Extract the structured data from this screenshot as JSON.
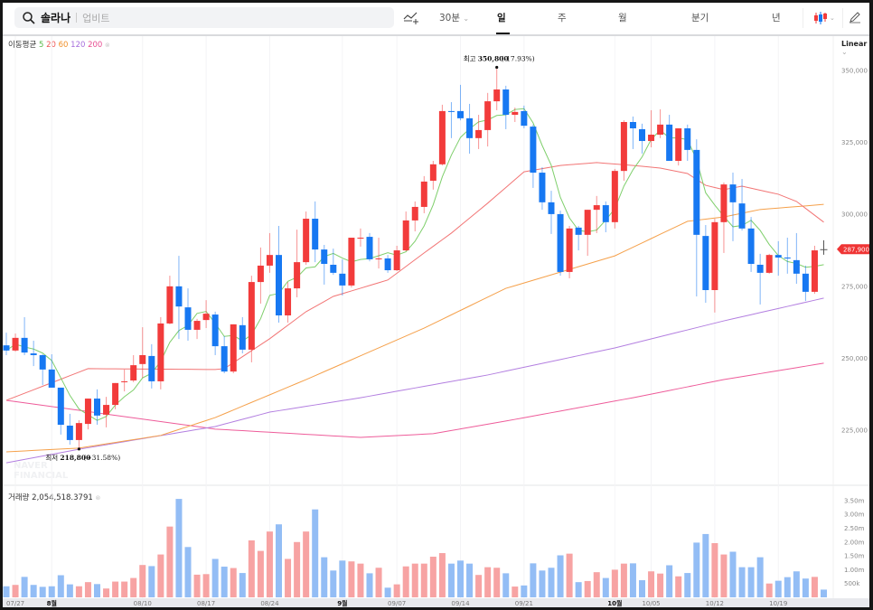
{
  "header": {
    "search_name": "솔라나",
    "search_exchange": "업비트",
    "interval_label": "30분",
    "tabs": [
      "일",
      "주",
      "월",
      "분기",
      "년"
    ],
    "active_tab": "일"
  },
  "legend": {
    "ma_label": "이동평균",
    "ma_periods": [
      "5",
      "20",
      "60",
      "120",
      "200"
    ],
    "volume_label": "거래량",
    "volume_value": "2,054,518.3791",
    "scale_label": "Linear"
  },
  "colors": {
    "up": "#f23b3b",
    "down": "#1778f2",
    "up_vol": "#f7a3a3",
    "down_vol": "#93bdf5",
    "ma5": "#7fcf6c",
    "ma20": "#f27575",
    "ma60": "#f5a04a",
    "ma120": "#b37fe0",
    "ma200": "#ee5c9a",
    "last_price_bg": "#ef3434"
  },
  "watermark": "NAVER FINANCIAL",
  "chart_data": {
    "type": "candlestick",
    "y_ticks": [
      "350,000",
      "325,000",
      "300,000",
      "275,000",
      "250,000",
      "225,000"
    ],
    "y_tick_values": [
      350000,
      325000,
      300000,
      275000,
      250000,
      225000
    ],
    "ylim": [
      212000,
      362000
    ],
    "volume_ticks": [
      "3.50m",
      "3.00m",
      "2.50m",
      "2.00m",
      "1.50m",
      "1.00m",
      "500k"
    ],
    "volume_tick_values": [
      3.5,
      3.0,
      2.5,
      2.0,
      1.5,
      1.0,
      0.5
    ],
    "x_labels": [
      {
        "i": 1,
        "label": "07/27",
        "month": false
      },
      {
        "i": 5,
        "label": "8월",
        "month": true
      },
      {
        "i": 15,
        "label": "08/10",
        "month": false
      },
      {
        "i": 22,
        "label": "08/17",
        "month": false
      },
      {
        "i": 29,
        "label": "08/24",
        "month": false
      },
      {
        "i": 37,
        "label": "9월",
        "month": true
      },
      {
        "i": 43,
        "label": "09/07",
        "month": false
      },
      {
        "i": 50,
        "label": "09/14",
        "month": false
      },
      {
        "i": 57,
        "label": "09/21",
        "month": false
      },
      {
        "i": 67,
        "label": "10월",
        "month": true
      },
      {
        "i": 71,
        "label": "10/05",
        "month": false
      },
      {
        "i": 78,
        "label": "10/12",
        "month": false
      },
      {
        "i": 85,
        "label": "10/19",
        "month": false
      }
    ],
    "high_annotation": {
      "i": 54,
      "value": 350800,
      "label": "최고",
      "value_text": "350,800",
      "pct_text": "(-17.93%)"
    },
    "low_annotation": {
      "i": 8,
      "value": 218800,
      "label": "최저",
      "value_text": "218,800",
      "pct_text": "(+31.58%)"
    },
    "last_price": {
      "value": 287900,
      "label": "287,900"
    },
    "candles_ohlc_volume_m": [
      [
        254500,
        258900,
        251100,
        252700,
        0.4
      ],
      [
        252700,
        258600,
        252300,
        257100,
        0.45
      ],
      [
        257100,
        264300,
        251100,
        252000,
        0.74
      ],
      [
        251700,
        256100,
        247300,
        251100,
        0.45
      ],
      [
        251100,
        251400,
        240700,
        246100,
        0.38
      ],
      [
        246100,
        251400,
        239800,
        239800,
        0.4
      ],
      [
        239800,
        239800,
        223500,
        226900,
        0.8
      ],
      [
        226600,
        230700,
        220000,
        221600,
        0.47
      ],
      [
        221600,
        228500,
        218800,
        227500,
        0.4
      ],
      [
        227200,
        236000,
        225300,
        236000,
        0.55
      ],
      [
        236000,
        239200,
        226900,
        230100,
        0.48
      ],
      [
        230400,
        236600,
        226000,
        233800,
        0.32
      ],
      [
        233800,
        241400,
        232300,
        241400,
        0.57
      ],
      [
        241700,
        246100,
        238500,
        242000,
        0.57
      ],
      [
        242300,
        251100,
        241700,
        247600,
        0.7
      ],
      [
        248000,
        260800,
        243200,
        251100,
        1.17
      ],
      [
        250800,
        254900,
        239500,
        242000,
        1.13
      ],
      [
        242000,
        264300,
        239200,
        262100,
        1.55
      ],
      [
        262100,
        278700,
        261800,
        275000,
        2.56
      ],
      [
        275000,
        285600,
        256700,
        268000,
        3.56
      ],
      [
        267700,
        274300,
        256100,
        259900,
        1.82
      ],
      [
        259900,
        263700,
        256700,
        263000,
        0.82
      ],
      [
        263300,
        270200,
        260500,
        265500,
        0.84
      ],
      [
        265200,
        266200,
        251100,
        254200,
        1.39
      ],
      [
        254200,
        257700,
        244800,
        245400,
        1.11
      ],
      [
        245400,
        261800,
        244800,
        261800,
        1.06
      ],
      [
        261500,
        264300,
        251700,
        253000,
        0.88
      ],
      [
        253000,
        278700,
        248600,
        276500,
        2.06
      ],
      [
        276500,
        288500,
        269000,
        282200,
        1.68
      ],
      [
        282200,
        293500,
        279700,
        285900,
        2.38
      ],
      [
        285900,
        296000,
        262400,
        264900,
        2.64
      ],
      [
        264900,
        276500,
        262400,
        274300,
        1.39
      ],
      [
        274300,
        294700,
        271200,
        283400,
        2.0
      ],
      [
        283400,
        301000,
        282500,
        298500,
        2.38
      ],
      [
        298500,
        304500,
        283400,
        287800,
        3.18
      ],
      [
        287800,
        289400,
        275600,
        282800,
        1.45
      ],
      [
        282500,
        288100,
        279000,
        279700,
        0.97
      ],
      [
        279400,
        284400,
        271800,
        275300,
        1.33
      ],
      [
        275300,
        291900,
        274600,
        291900,
        1.3
      ],
      [
        291600,
        295100,
        288800,
        291900,
        1.22
      ],
      [
        292200,
        293500,
        283700,
        284400,
        0.87
      ],
      [
        284400,
        291900,
        281200,
        284700,
        1.07
      ],
      [
        284700,
        285900,
        279700,
        280600,
        0.35
      ],
      [
        280600,
        289100,
        280300,
        287500,
        0.47
      ],
      [
        287500,
        301000,
        287200,
        297900,
        1.12
      ],
      [
        297900,
        304500,
        294100,
        302600,
        1.22
      ],
      [
        302600,
        313300,
        300400,
        311400,
        1.22
      ],
      [
        311700,
        318600,
        308600,
        317400,
        1.47
      ],
      [
        317400,
        338100,
        317000,
        335900,
        1.6
      ],
      [
        335900,
        339000,
        326500,
        335600,
        1.22
      ],
      [
        335900,
        345000,
        332700,
        333400,
        1.33
      ],
      [
        333400,
        338400,
        321100,
        326500,
        1.22
      ],
      [
        326500,
        334600,
        322700,
        329300,
        0.81
      ],
      [
        329300,
        342200,
        323600,
        339300,
        1.09
      ],
      [
        339300,
        350800,
        336200,
        343400,
        1.07
      ],
      [
        343400,
        344700,
        329600,
        334600,
        0.87
      ],
      [
        334600,
        337100,
        332100,
        335600,
        0.39
      ],
      [
        335900,
        337800,
        329900,
        330800,
        0.43
      ],
      [
        330500,
        331200,
        309200,
        314500,
        1.23
      ],
      [
        314500,
        316400,
        301600,
        304200,
        0.97
      ],
      [
        304200,
        308200,
        293200,
        300100,
        1.07
      ],
      [
        300100,
        301300,
        278700,
        280000,
        1.52
      ],
      [
        280000,
        296000,
        277800,
        295100,
        1.58
      ],
      [
        295400,
        296000,
        287500,
        292900,
        0.55
      ],
      [
        292900,
        301600,
        285600,
        301600,
        0.59
      ],
      [
        301600,
        306400,
        293500,
        303200,
        0.91
      ],
      [
        303200,
        304500,
        293800,
        297300,
        0.7
      ],
      [
        297300,
        315800,
        295100,
        315100,
        1.0
      ],
      [
        315100,
        332700,
        311700,
        332100,
        1.22
      ],
      [
        332100,
        334000,
        322700,
        329900,
        1.23
      ],
      [
        329600,
        331500,
        321100,
        325500,
        0.62
      ],
      [
        325500,
        336200,
        323300,
        327700,
        0.94
      ],
      [
        327700,
        336500,
        326500,
        331200,
        0.86
      ],
      [
        331200,
        334600,
        318600,
        318600,
        1.16
      ],
      [
        318600,
        329900,
        317000,
        329900,
        0.76
      ],
      [
        329900,
        331200,
        318600,
        322400,
        0.88
      ],
      [
        322400,
        326100,
        271500,
        292900,
        1.98
      ],
      [
        292500,
        296300,
        269300,
        273700,
        2.29
      ],
      [
        273700,
        298500,
        265900,
        297300,
        1.96
      ],
      [
        297300,
        311100,
        286600,
        310400,
        1.55
      ],
      [
        310400,
        314500,
        290700,
        304200,
        1.65
      ],
      [
        303800,
        312300,
        294400,
        295100,
        1.09
      ],
      [
        295100,
        299100,
        280000,
        282800,
        1.09
      ],
      [
        282500,
        286300,
        268700,
        279700,
        1.45
      ],
      [
        279700,
        286300,
        279400,
        285900,
        0.5
      ],
      [
        285900,
        290700,
        278700,
        285000,
        0.6
      ],
      [
        285000,
        291900,
        279400,
        284700,
        0.73
      ],
      [
        284100,
        293500,
        275900,
        279400,
        0.94
      ],
      [
        279400,
        282200,
        269900,
        273100,
        0.68
      ],
      [
        273100,
        289100,
        272400,
        287500,
        0.74
      ],
      [
        287900,
        291000,
        286000,
        287900,
        0.28
      ]
    ],
    "moving_averages": {
      "ma20": [
        [
          0,
          235400
        ],
        [
          9,
          246400
        ],
        [
          23,
          246100
        ],
        [
          24,
          246400
        ],
        [
          29,
          256800
        ],
        [
          33,
          266200
        ],
        [
          36,
          271500
        ],
        [
          42,
          277200
        ],
        [
          46,
          286600
        ],
        [
          49,
          293500
        ],
        [
          53,
          303900
        ],
        [
          57,
          314800
        ],
        [
          61,
          317000
        ],
        [
          65,
          318000
        ],
        [
          69,
          317000
        ],
        [
          72,
          316100
        ],
        [
          75,
          314200
        ],
        [
          77,
          310100
        ],
        [
          79,
          308600
        ],
        [
          81,
          309800
        ],
        [
          85,
          307000
        ],
        [
          87,
          304500
        ],
        [
          90,
          297300
        ]
      ],
      "ma60": [
        [
          0,
          217500
        ],
        [
          8,
          218800
        ],
        [
          17,
          223200
        ],
        [
          23,
          229400
        ],
        [
          33,
          242600
        ],
        [
          46,
          260500
        ],
        [
          55,
          274300
        ],
        [
          67,
          285600
        ],
        [
          75,
          297600
        ],
        [
          79,
          299100
        ],
        [
          83,
          301700
        ],
        [
          89,
          303200
        ],
        [
          90,
          303500
        ]
      ],
      "ma120": [
        [
          0,
          213700
        ],
        [
          8,
          218400
        ],
        [
          23,
          226300
        ],
        [
          29,
          231300
        ],
        [
          39,
          236300
        ],
        [
          53,
          244200
        ],
        [
          67,
          253600
        ],
        [
          79,
          263000
        ],
        [
          90,
          270900
        ]
      ],
      "ma200": [
        [
          0,
          235400
        ],
        [
          23,
          225400
        ],
        [
          39,
          222500
        ],
        [
          47,
          223800
        ],
        [
          55,
          228200
        ],
        [
          69,
          236300
        ],
        [
          79,
          242600
        ],
        [
          90,
          248300
        ]
      ]
    }
  }
}
